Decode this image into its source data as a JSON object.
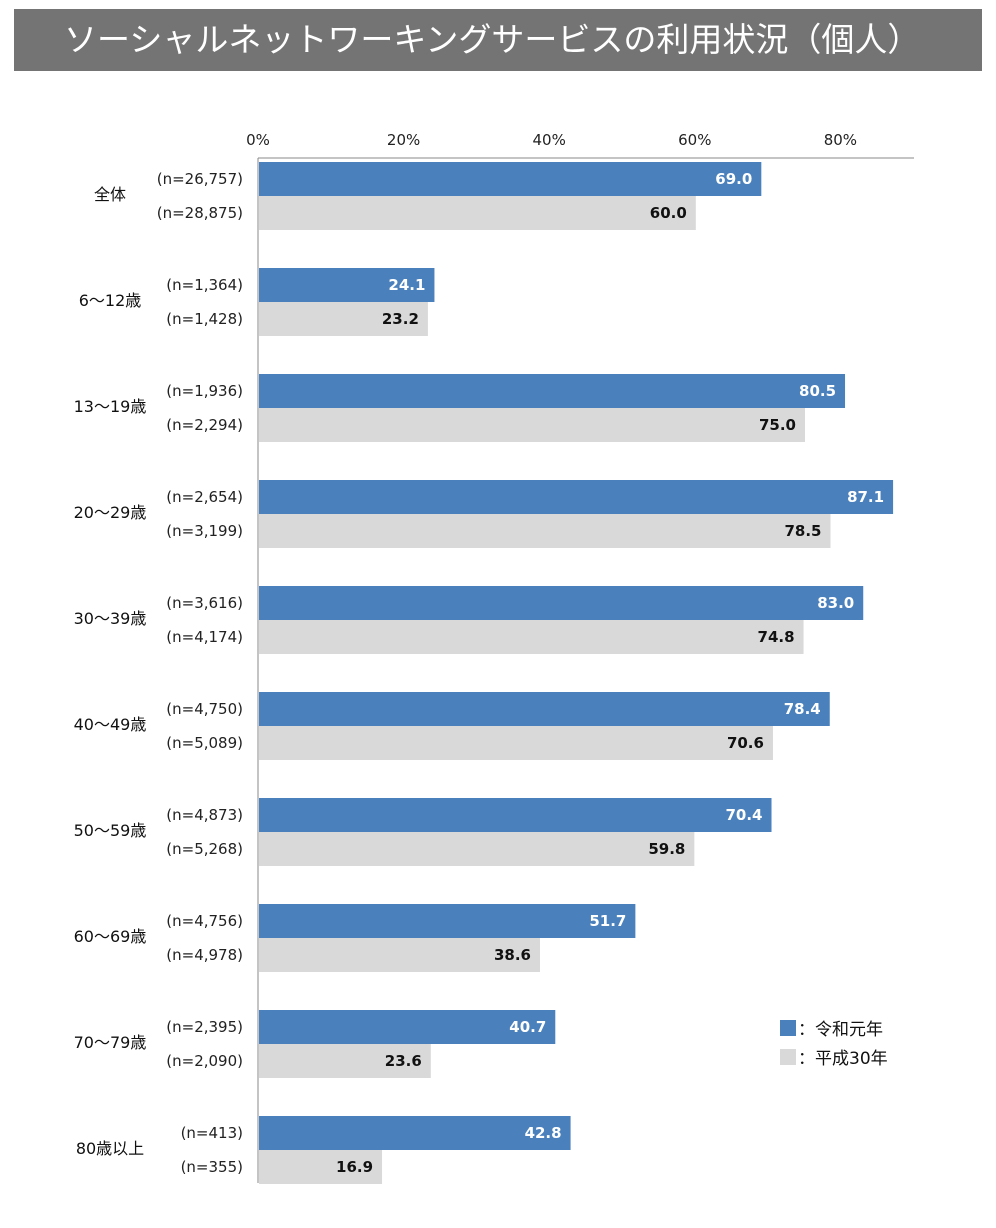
{
  "title": "ソーシャルネットワーキングサービスの利用状況（個人）",
  "chart_data": {
    "type": "bar",
    "orientation": "horizontal",
    "xlim": [
      0,
      90
    ],
    "x_ticks": [
      "0%",
      "20%",
      "40%",
      "60%",
      "80%"
    ],
    "x_tick_values": [
      0,
      20,
      40,
      60,
      80
    ],
    "categories": [
      "全体",
      "6～12歳",
      "13～19歳",
      "20～29歳",
      "30～39歳",
      "40～49歳",
      "50～59歳",
      "60～69歳",
      "70～79歳",
      "80歳以上"
    ],
    "series": [
      {
        "name": "令和元年",
        "legend_label": "：令和元年",
        "color": "#4a81bd",
        "value_color": "#ffffff",
        "values": [
          69.0,
          24.1,
          80.5,
          87.1,
          83.0,
          78.4,
          70.4,
          51.7,
          40.7,
          42.8
        ],
        "value_labels": [
          "69.0",
          "24.1",
          "80.5",
          "87.1",
          "83.0",
          "78.4",
          "70.4",
          "51.7",
          "40.7",
          "42.8"
        ],
        "n_labels": [
          "(n=26,757)",
          "(n=1,364)",
          "(n=1,936)",
          "(n=2,654)",
          "(n=3,616)",
          "(n=4,750)",
          "(n=4,873)",
          "(n=4,756)",
          "(n=2,395)",
          "(n=413)"
        ]
      },
      {
        "name": "平成30年",
        "legend_label": "：平成30年",
        "color": "#d9d9d9",
        "value_color": "#111111",
        "values": [
          60.0,
          23.2,
          75.0,
          78.5,
          74.8,
          70.6,
          59.8,
          38.6,
          23.6,
          16.9
        ],
        "value_labels": [
          "60.0",
          "23.2",
          "75.0",
          "78.5",
          "74.8",
          "70.6",
          "59.8",
          "38.6",
          "23.6",
          "16.9"
        ],
        "n_labels": [
          "(n=28,875)",
          "(n=1,428)",
          "(n=2,294)",
          "(n=3,199)",
          "(n=4,174)",
          "(n=5,089)",
          "(n=5,268)",
          "(n=4,978)",
          "(n=2,090)",
          "(n=355)"
        ]
      }
    ],
    "grid": false,
    "legend_position": "bottom-right"
  }
}
